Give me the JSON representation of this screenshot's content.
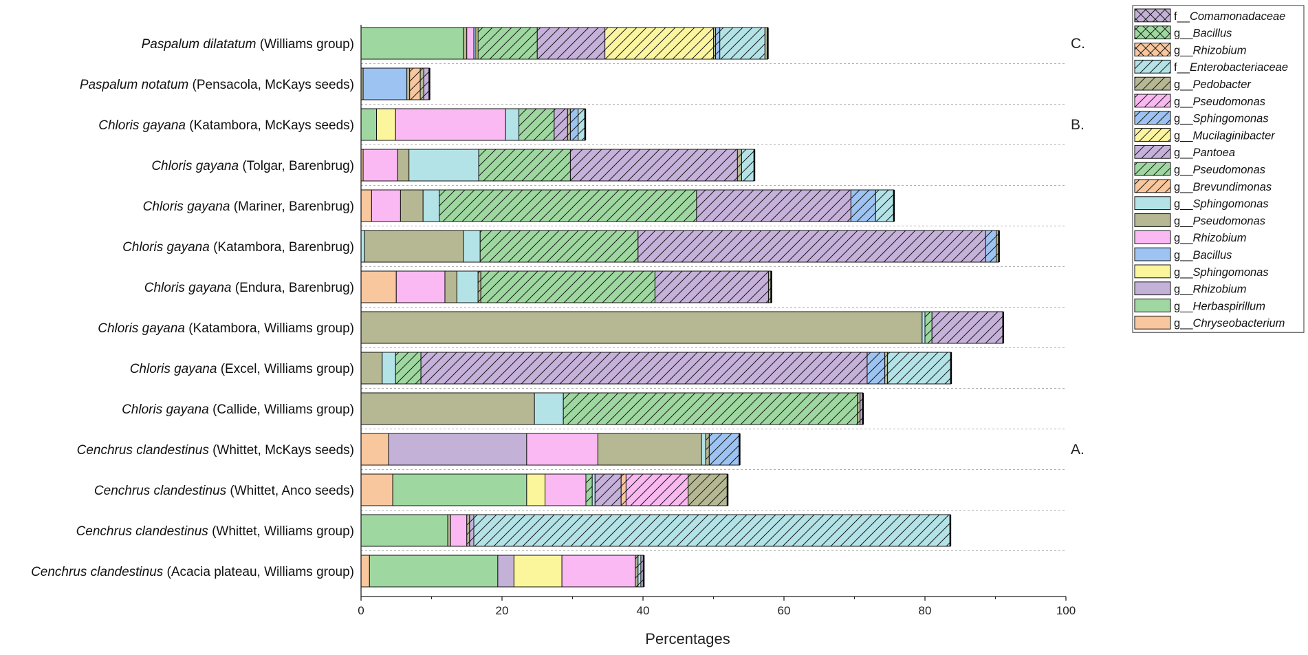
{
  "chart_data": {
    "type": "bar",
    "orientation": "horizontal",
    "stacked": true,
    "xlabel": "Percentages",
    "xlim": [
      0,
      100
    ],
    "xticks": [
      "0",
      "20",
      "40",
      "60",
      "80",
      "100"
    ],
    "grid": "dotted row separators",
    "legend_position": "right",
    "annotations": [
      {
        "text": "C.",
        "row": 0
      },
      {
        "text": "B.",
        "row": 2
      },
      {
        "text": "A.",
        "row": 10
      }
    ],
    "legend": [
      {
        "id": "fComa",
        "prefix": "f__",
        "taxon": "Comamonadaceae",
        "color": "#c3b1d8",
        "pattern": "cross"
      },
      {
        "id": "gBacH",
        "prefix": "g__",
        "taxon": "Bacillus",
        "color": "#9ed8a0",
        "pattern": "cross"
      },
      {
        "id": "gRhiX",
        "prefix": "g__",
        "taxon": "Rhizobium",
        "color": "#f9c79d",
        "pattern": "cross"
      },
      {
        "id": "fEnte",
        "prefix": "f__",
        "taxon": "Enterobacteriaceae",
        "color": "#b3e3e7",
        "pattern": "hatch"
      },
      {
        "id": "gPedo",
        "prefix": "g__",
        "taxon": "Pedobacter",
        "color": "#b6b893",
        "pattern": "hatch"
      },
      {
        "id": "gPseH",
        "prefix": "g__",
        "taxon": "Pseudomonas",
        "color": "#f9b8f0",
        "pattern": "hatch"
      },
      {
        "id": "gSphH",
        "prefix": "g__",
        "taxon": "Sphingomonas",
        "color": "#9dc3f2",
        "pattern": "hatch"
      },
      {
        "id": "gMuci",
        "prefix": "g__",
        "taxon": "Mucilaginibacter",
        "color": "#fbf5a0",
        "pattern": "hatch"
      },
      {
        "id": "gPant",
        "prefix": "g__",
        "taxon": "Pantoea",
        "color": "#c6b1da",
        "pattern": "hatch"
      },
      {
        "id": "gPseG",
        "prefix": "g__",
        "taxon": "Pseudomonas",
        "color": "#9ed8a0",
        "pattern": "hatch"
      },
      {
        "id": "gBrev",
        "prefix": "g__",
        "taxon": "Brevundimonas",
        "color": "#f9c79d",
        "pattern": "hatch"
      },
      {
        "id": "gSphC",
        "prefix": "g__",
        "taxon": "Sphingomonas",
        "color": "#b3e3e7",
        "pattern": "solid"
      },
      {
        "id": "gPseO",
        "prefix": "g__",
        "taxon": "Pseudomonas",
        "color": "#b6b893",
        "pattern": "solid"
      },
      {
        "id": "gRhiP",
        "prefix": "g__",
        "taxon": "Rhizobium",
        "color": "#fbb9f3",
        "pattern": "solid"
      },
      {
        "id": "gBacB",
        "prefix": "g__",
        "taxon": "Bacillus",
        "color": "#9dc3f2",
        "pattern": "solid"
      },
      {
        "id": "gSphY",
        "prefix": "g__",
        "taxon": "Sphingomonas",
        "color": "#fbf59c",
        "pattern": "solid"
      },
      {
        "id": "gRhiL",
        "prefix": "g__",
        "taxon": "Rhizobium",
        "color": "#c3b1d8",
        "pattern": "solid"
      },
      {
        "id": "gHerb",
        "prefix": "g__",
        "taxon": "Herbaspirillum",
        "color": "#9ed8a0",
        "pattern": "solid"
      },
      {
        "id": "gChry",
        "prefix": "g__",
        "taxon": "Chryseobacterium",
        "color": "#f9c79d",
        "pattern": "solid"
      }
    ],
    "rows": [
      {
        "species": "Paspalum dilatatum",
        "variety": " (Williams group)",
        "segments": [
          {
            "taxon": "gHerb",
            "value": 14.5
          },
          {
            "taxon": "gPseO",
            "value": 0.5
          },
          {
            "taxon": "gRhiP",
            "value": 1.0
          },
          {
            "taxon": "gBacB",
            "value": 0.3
          },
          {
            "taxon": "gSphY",
            "value": 0.3
          },
          {
            "taxon": "gPseG",
            "value": 8.4
          },
          {
            "taxon": "gPant",
            "value": 9.6
          },
          {
            "taxon": "gMuci",
            "value": 15.4
          },
          {
            "taxon": "gPedo",
            "value": 0.3
          },
          {
            "taxon": "gSphH",
            "value": 0.6
          },
          {
            "taxon": "fEnte",
            "value": 6.4
          },
          {
            "taxon": "gPseO",
            "value": 0.4
          }
        ]
      },
      {
        "species": "Paspalum notatum",
        "variety": " (Pensacola, McKays seeds)",
        "segments": [
          {
            "taxon": "gPseO",
            "value": 0.3
          },
          {
            "taxon": "gBacB",
            "value": 6.2
          },
          {
            "taxon": "gPseO",
            "value": 0.4
          },
          {
            "taxon": "gBrev",
            "value": 1.5
          },
          {
            "taxon": "gPedo",
            "value": 0.5
          },
          {
            "taxon": "gPant",
            "value": 0.8
          }
        ]
      },
      {
        "species": "Chloris gayana",
        "variety": " (Katambora, McKays seeds)",
        "segments": [
          {
            "taxon": "gHerb",
            "value": 2.2
          },
          {
            "taxon": "gSphY",
            "value": 2.7
          },
          {
            "taxon": "gRhiP",
            "value": 15.6
          },
          {
            "taxon": "gSphC",
            "value": 1.9
          },
          {
            "taxon": "gPseG",
            "value": 5.0
          },
          {
            "taxon": "gPant",
            "value": 1.9
          },
          {
            "taxon": "gPedo",
            "value": 0.4
          },
          {
            "taxon": "gSphH",
            "value": 1.1
          },
          {
            "taxon": "fEnte",
            "value": 1.0
          }
        ]
      },
      {
        "species": "Chloris gayana",
        "variety": " (Tolgar, Barenbrug)",
        "segments": [
          {
            "taxon": "gChry",
            "value": 0.3
          },
          {
            "taxon": "gRhiP",
            "value": 4.9
          },
          {
            "taxon": "gPseO",
            "value": 1.6
          },
          {
            "taxon": "gSphC",
            "value": 9.9
          },
          {
            "taxon": "gPseG",
            "value": 13.0
          },
          {
            "taxon": "gPant",
            "value": 23.7
          },
          {
            "taxon": "gPedo",
            "value": 0.6
          },
          {
            "taxon": "fEnte",
            "value": 1.8
          }
        ]
      },
      {
        "species": "Chloris gayana",
        "variety": " (Mariner, Barenbrug)",
        "segments": [
          {
            "taxon": "gChry",
            "value": 1.5
          },
          {
            "taxon": "gRhiP",
            "value": 4.1
          },
          {
            "taxon": "gPseO",
            "value": 3.2
          },
          {
            "taxon": "gSphC",
            "value": 2.3
          },
          {
            "taxon": "gPseG",
            "value": 36.5
          },
          {
            "taxon": "gPant",
            "value": 21.9
          },
          {
            "taxon": "gSphH",
            "value": 3.5
          },
          {
            "taxon": "fEnte",
            "value": 2.6
          }
        ]
      },
      {
        "species": "Chloris gayana",
        "variety": " (Katambora, Barenbrug)",
        "segments": [
          {
            "taxon": "gSphC",
            "value": 0.5
          },
          {
            "taxon": "gPseO",
            "value": 14.0
          },
          {
            "taxon": "gSphC",
            "value": 2.4
          },
          {
            "taxon": "gPseG",
            "value": 22.4
          },
          {
            "taxon": "gPant",
            "value": 49.3
          },
          {
            "taxon": "gSphH",
            "value": 1.5
          },
          {
            "taxon": "gPedo",
            "value": 0.4
          }
        ]
      },
      {
        "species": "Chloris gayana",
        "variety": " (Endura, Barenbrug)",
        "segments": [
          {
            "taxon": "gChry",
            "value": 5.0
          },
          {
            "taxon": "gRhiP",
            "value": 6.9
          },
          {
            "taxon": "gPseO",
            "value": 1.7
          },
          {
            "taxon": "gSphC",
            "value": 3.0
          },
          {
            "taxon": "gPedo",
            "value": 0.4
          },
          {
            "taxon": "gPseG",
            "value": 24.7
          },
          {
            "taxon": "gPant",
            "value": 16.1
          },
          {
            "taxon": "gPedo",
            "value": 0.4
          }
        ]
      },
      {
        "species": "Chloris gayana",
        "variety": " (Katambora, Williams group)",
        "segments": [
          {
            "taxon": "gPseO",
            "value": 79.6
          },
          {
            "taxon": "gSphC",
            "value": 0.4
          },
          {
            "taxon": "gPseG",
            "value": 1.0
          },
          {
            "taxon": "gPant",
            "value": 10.1
          }
        ]
      },
      {
        "species": "Chloris gayana",
        "variety": " (Excel, Williams group)",
        "segments": [
          {
            "taxon": "gPseO",
            "value": 3.0
          },
          {
            "taxon": "gSphC",
            "value": 1.9
          },
          {
            "taxon": "gPseG",
            "value": 3.6
          },
          {
            "taxon": "gPant",
            "value": 63.3
          },
          {
            "taxon": "gSphH",
            "value": 2.5
          },
          {
            "taxon": "gPedo",
            "value": 0.4
          },
          {
            "taxon": "fEnte",
            "value": 9.0
          }
        ]
      },
      {
        "species": "Chloris gayana",
        "variety": " (Callide, Williams group)",
        "segments": [
          {
            "taxon": "gPseO",
            "value": 24.6
          },
          {
            "taxon": "gSphC",
            "value": 4.1
          },
          {
            "taxon": "gPseG",
            "value": 41.7
          },
          {
            "taxon": "gPedo",
            "value": 0.4
          },
          {
            "taxon": "gPant",
            "value": 0.4
          }
        ]
      },
      {
        "species": "Cenchrus clandestinus",
        "variety": " (Whittet, McKays seeds)",
        "segments": [
          {
            "taxon": "gChry",
            "value": 3.9
          },
          {
            "taxon": "gRhiL",
            "value": 19.6
          },
          {
            "taxon": "gRhiP",
            "value": 10.1
          },
          {
            "taxon": "gPseO",
            "value": 14.7
          },
          {
            "taxon": "gSphC",
            "value": 0.6
          },
          {
            "taxon": "gPedo",
            "value": 0.5
          },
          {
            "taxon": "gSphH",
            "value": 4.3
          }
        ]
      },
      {
        "species": "Cenchrus clandestinus",
        "variety": " (Whittet, Anco seeds)",
        "segments": [
          {
            "taxon": "gChry",
            "value": 4.5
          },
          {
            "taxon": "gHerb",
            "value": 19.0
          },
          {
            "taxon": "gSphY",
            "value": 2.6
          },
          {
            "taxon": "gRhiP",
            "value": 5.8
          },
          {
            "taxon": "gPseG",
            "value": 0.9
          },
          {
            "taxon": "gSphC",
            "value": 0.4
          },
          {
            "taxon": "gPant",
            "value": 3.7
          },
          {
            "taxon": "gBrev",
            "value": 0.7
          },
          {
            "taxon": "gPseH",
            "value": 8.8
          },
          {
            "taxon": "gPedo",
            "value": 5.6
          }
        ]
      },
      {
        "species": "Cenchrus clandestinus",
        "variety": " (Whittet, Williams group)",
        "segments": [
          {
            "taxon": "gHerb",
            "value": 12.3
          },
          {
            "taxon": "gPseO",
            "value": 0.4
          },
          {
            "taxon": "gRhiP",
            "value": 2.3
          },
          {
            "taxon": "gPedo",
            "value": 0.4
          },
          {
            "taxon": "gPant",
            "value": 0.6
          },
          {
            "taxon": "fEnte",
            "value": 67.6
          }
        ]
      },
      {
        "species": "Cenchrus clandestinus",
        "variety": " (Acacia plateau, Williams group)",
        "segments": [
          {
            "taxon": "gChry",
            "value": 1.2
          },
          {
            "taxon": "gHerb",
            "value": 18.2
          },
          {
            "taxon": "gRhiL",
            "value": 2.3
          },
          {
            "taxon": "gSphY",
            "value": 6.8
          },
          {
            "taxon": "gRhiP",
            "value": 10.4
          },
          {
            "taxon": "gPedo",
            "value": 0.4
          },
          {
            "taxon": "fEnte",
            "value": 0.4
          },
          {
            "taxon": "gPant",
            "value": 0.4
          }
        ]
      }
    ]
  }
}
